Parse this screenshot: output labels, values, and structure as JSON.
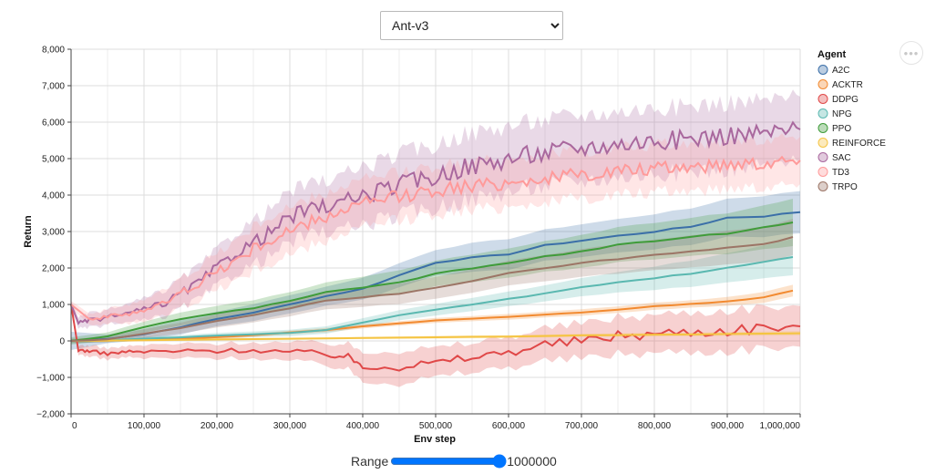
{
  "env_select": {
    "selected": "Ant-v3",
    "options": [
      "Ant-v3"
    ]
  },
  "menu": {
    "icon": "more-horizontal-icon",
    "glyph": "•••"
  },
  "range": {
    "label": "Range",
    "value": 1000000,
    "display": "1000000"
  },
  "colors": {
    "A2C": "#3b6fa8",
    "ACKTR": "#f28a30",
    "DDPG": "#e04848",
    "NPG": "#5ab8b0",
    "PPO": "#3f9c3a",
    "REINFORCE": "#f5c442",
    "SAC": "#a9689e",
    "TD3": "#ff9a9a",
    "TRPO": "#9c7566"
  },
  "chart_data": {
    "type": "line",
    "title": "",
    "xlabel": "Env step",
    "ylabel": "Return",
    "xlim": [
      0,
      1000000
    ],
    "ylim": [
      -2000,
      8000
    ],
    "grid": true,
    "legend_title": "Agent",
    "legend_placement": "right",
    "x_ticks": [
      0,
      100000,
      200000,
      300000,
      400000,
      500000,
      600000,
      700000,
      800000,
      900000,
      1000000
    ],
    "x_tick_labels": [
      "0",
      "100,000",
      "200,000",
      "300,000",
      "400,000",
      "500,000",
      "600,000",
      "700,000",
      "800,000",
      "900,000",
      "1,000,000"
    ],
    "y_ticks": [
      -2000,
      -1000,
      0,
      1000,
      2000,
      3000,
      4000,
      5000,
      6000,
      7000,
      8000
    ],
    "y_tick_labels": [
      "−2,000",
      "−1,000",
      "0",
      "1,000",
      "2,000",
      "3,000",
      "4,000",
      "5,000",
      "6,000",
      "7,000",
      "8,000"
    ],
    "series": [
      {
        "name": "A2C",
        "x": [
          0,
          50000,
          100000,
          150000,
          200000,
          250000,
          300000,
          350000,
          400000,
          450000,
          500000,
          550000,
          600000,
          650000,
          700000,
          750000,
          800000,
          850000,
          900000,
          950000,
          1000000
        ],
        "y": [
          0,
          60,
          180,
          380,
          600,
          780,
          1000,
          1230,
          1430,
          1800,
          2150,
          2280,
          2380,
          2620,
          2750,
          2880,
          3000,
          3130,
          3380,
          3420,
          3530
        ],
        "band": [
          250,
          120,
          150,
          200,
          200,
          230,
          250,
          260,
          300,
          330,
          350,
          400,
          420,
          430,
          450,
          460,
          480,
          500,
          520,
          560,
          580
        ]
      },
      {
        "name": "ACKTR",
        "x": [
          0,
          50000,
          100000,
          150000,
          200000,
          250000,
          300000,
          350000,
          400000,
          450000,
          500000,
          550000,
          600000,
          650000,
          700000,
          750000,
          800000,
          850000,
          900000,
          950000,
          990000
        ],
        "y": [
          0,
          10,
          30,
          60,
          100,
          160,
          230,
          300,
          400,
          480,
          560,
          610,
          660,
          720,
          780,
          860,
          950,
          1010,
          1080,
          1200,
          1380
        ],
        "band": [
          40,
          40,
          40,
          40,
          50,
          50,
          50,
          60,
          60,
          60,
          70,
          70,
          80,
          80,
          90,
          90,
          100,
          100,
          120,
          150,
          160
        ]
      },
      {
        "name": "DDPG",
        "x": [
          0,
          10000,
          25000,
          50000,
          75000,
          100000,
          150000,
          200000,
          250000,
          300000,
          350000,
          380000,
          400000,
          450000,
          500000,
          550000,
          600000,
          650000,
          700000,
          750000,
          800000,
          850000,
          900000,
          950000,
          1000000
        ],
        "y": [
          1000,
          -250,
          -280,
          -350,
          -300,
          -300,
          -280,
          -270,
          -250,
          -300,
          -350,
          -450,
          -650,
          -700,
          -600,
          -450,
          -300,
          -100,
          0,
          150,
          200,
          250,
          300,
          380,
          400
        ],
        "band": [
          150,
          120,
          150,
          150,
          150,
          180,
          200,
          200,
          220,
          250,
          300,
          350,
          400,
          450,
          400,
          400,
          420,
          450,
          480,
          500,
          520,
          540,
          560,
          560,
          560
        ]
      },
      {
        "name": "NPG",
        "x": [
          0,
          50000,
          100000,
          150000,
          200000,
          250000,
          300000,
          350000,
          400000,
          450000,
          500000,
          550000,
          600000,
          650000,
          700000,
          750000,
          800000,
          850000,
          900000,
          950000,
          990000
        ],
        "y": [
          0,
          20,
          60,
          100,
          150,
          180,
          220,
          300,
          500,
          700,
          850,
          1000,
          1150,
          1300,
          1480,
          1600,
          1720,
          1850,
          2000,
          2150,
          2300
        ],
        "band": [
          60,
          60,
          60,
          60,
          70,
          80,
          90,
          100,
          120,
          140,
          160,
          180,
          200,
          220,
          250,
          280,
          320,
          360,
          400,
          450,
          500
        ]
      },
      {
        "name": "PPO",
        "x": [
          0,
          50000,
          100000,
          150000,
          200000,
          250000,
          300000,
          350000,
          400000,
          450000,
          500000,
          550000,
          600000,
          650000,
          700000,
          750000,
          800000,
          850000,
          900000,
          950000,
          990000
        ],
        "y": [
          0,
          120,
          380,
          600,
          760,
          900,
          1100,
          1350,
          1450,
          1600,
          1850,
          2000,
          2150,
          2320,
          2450,
          2650,
          2750,
          2850,
          2950,
          3100,
          3250
        ],
        "band": [
          100,
          110,
          150,
          180,
          200,
          220,
          240,
          260,
          300,
          330,
          350,
          380,
          400,
          420,
          450,
          480,
          500,
          520,
          560,
          600,
          650
        ]
      },
      {
        "name": "REINFORCE",
        "x": [
          0,
          100000,
          200000,
          300000,
          400000,
          500000,
          600000,
          700000,
          800000,
          900000,
          1000000
        ],
        "y": [
          0,
          20,
          40,
          60,
          80,
          100,
          120,
          150,
          170,
          190,
          210
        ],
        "band": [
          30,
          30,
          30,
          30,
          30,
          40,
          40,
          40,
          50,
          50,
          60
        ]
      },
      {
        "name": "SAC",
        "x": [
          0,
          10000,
          25000,
          50000,
          75000,
          100000,
          125000,
          150000,
          175000,
          200000,
          225000,
          250000,
          275000,
          300000,
          325000,
          350000,
          375000,
          400000,
          425000,
          450000,
          475000,
          500000,
          525000,
          550000,
          575000,
          600000,
          625000,
          650000,
          675000,
          700000,
          725000,
          750000,
          775000,
          800000,
          825000,
          850000,
          875000,
          900000,
          925000,
          950000,
          975000,
          1000000
        ],
        "y": [
          1000,
          500,
          550,
          650,
          750,
          850,
          1000,
          1300,
          1600,
          2000,
          2400,
          2700,
          3000,
          3400,
          3600,
          3700,
          3800,
          4000,
          4100,
          4300,
          4400,
          4500,
          4700,
          4800,
          4900,
          5000,
          5100,
          5150,
          5250,
          5300,
          5350,
          5400,
          5450,
          5500,
          5500,
          5550,
          5600,
          5650,
          5650,
          5700,
          5750,
          5800
        ],
        "band": [
          100,
          150,
          200,
          200,
          250,
          300,
          350,
          400,
          450,
          500,
          550,
          600,
          650,
          700,
          700,
          700,
          750,
          800,
          800,
          850,
          850,
          850,
          900,
          900,
          900,
          900,
          900,
          900,
          900,
          900,
          900,
          900,
          900,
          900,
          900,
          900,
          900,
          900,
          900,
          900,
          900,
          900
        ]
      },
      {
        "name": "TD3",
        "x": [
          0,
          25000,
          50000,
          75000,
          100000,
          125000,
          150000,
          175000,
          200000,
          225000,
          250000,
          275000,
          300000,
          325000,
          350000,
          375000,
          400000,
          425000,
          450000,
          475000,
          500000,
          525000,
          550000,
          575000,
          600000,
          625000,
          650000,
          675000,
          700000,
          725000,
          750000,
          775000,
          800000,
          825000,
          850000,
          875000,
          900000,
          925000,
          950000,
          975000,
          1000000
        ],
        "y": [
          1000,
          600,
          650,
          750,
          850,
          1000,
          1300,
          1600,
          1900,
          2200,
          2500,
          2800,
          3000,
          3200,
          3400,
          3600,
          3750,
          3850,
          3950,
          4050,
          4150,
          4200,
          4250,
          4300,
          4350,
          4400,
          4450,
          4500,
          4550,
          4600,
          4650,
          4700,
          4700,
          4750,
          4800,
          4800,
          4850,
          4900,
          4900,
          4950,
          4950
        ],
        "band": [
          100,
          150,
          200,
          250,
          300,
          350,
          400,
          450,
          500,
          550,
          600,
          650,
          650,
          650,
          650,
          650,
          650,
          650,
          650,
          650,
          650,
          650,
          650,
          650,
          650,
          650,
          650,
          650,
          650,
          650,
          650,
          650,
          650,
          650,
          650,
          650,
          650,
          650,
          650,
          650,
          650
        ]
      },
      {
        "name": "TRPO",
        "x": [
          0,
          50000,
          100000,
          150000,
          200000,
          250000,
          300000,
          350000,
          400000,
          450000,
          500000,
          550000,
          600000,
          650000,
          700000,
          750000,
          800000,
          850000,
          900000,
          950000,
          990000
        ],
        "y": [
          0,
          40,
          200,
          350,
          550,
          700,
          900,
          1100,
          1200,
          1300,
          1450,
          1650,
          1850,
          2000,
          2150,
          2250,
          2350,
          2450,
          2550,
          2650,
          2850
        ],
        "band": [
          60,
          80,
          120,
          150,
          180,
          200,
          220,
          240,
          260,
          280,
          300,
          320,
          340,
          360,
          380,
          400,
          420,
          440,
          460,
          480,
          500
        ]
      }
    ]
  }
}
